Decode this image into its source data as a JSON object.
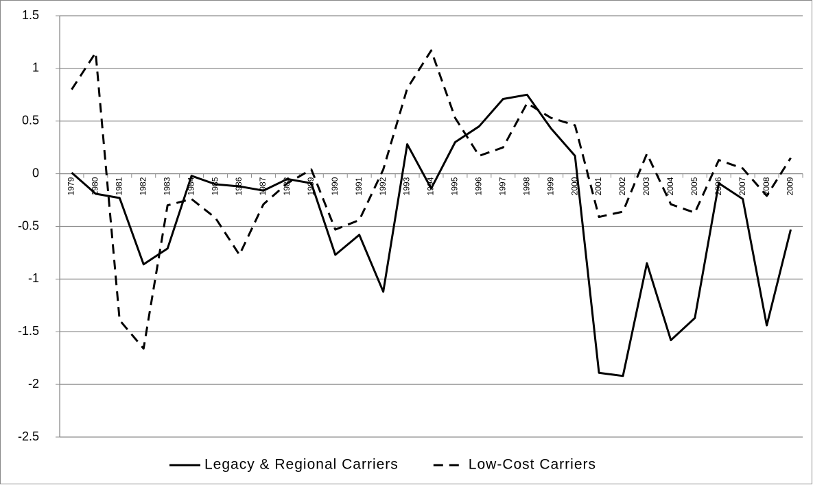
{
  "chart_data": {
    "type": "line",
    "categories": [
      "1979",
      "1980",
      "1981",
      "1982",
      "1983",
      "1984",
      "1985",
      "1986",
      "1987",
      "1988",
      "1989",
      "1990",
      "1991",
      "1992",
      "1993",
      "1994",
      "1995",
      "1996",
      "1997",
      "1998",
      "1999",
      "2000",
      "2001",
      "2002",
      "2003",
      "2004",
      "2005",
      "2006",
      "2007",
      "2008",
      "2009"
    ],
    "series": [
      {
        "name": "Legacy & Regional Carriers",
        "color": "#000000",
        "dash": false,
        "values": [
          0.01,
          -0.19,
          -0.23,
          -0.86,
          -0.71,
          -0.02,
          -0.1,
          -0.12,
          -0.16,
          -0.05,
          -0.09,
          -0.77,
          -0.58,
          -1.12,
          0.28,
          -0.14,
          0.3,
          0.45,
          0.71,
          0.75,
          0.43,
          0.17,
          -1.89,
          -1.92,
          -0.85,
          -1.58,
          -1.37,
          -0.09,
          -0.24,
          -1.44,
          -0.53
        ]
      },
      {
        "name": "Low-Cost Carriers",
        "color": "#000000",
        "dash": true,
        "values": [
          0.8,
          1.15,
          -1.39,
          -1.66,
          -0.3,
          -0.24,
          -0.42,
          -0.77,
          -0.29,
          -0.09,
          0.04,
          -0.53,
          -0.44,
          0.04,
          0.81,
          1.17,
          0.53,
          0.17,
          0.25,
          0.67,
          0.53,
          0.46,
          -0.41,
          -0.36,
          0.19,
          -0.29,
          -0.37,
          0.13,
          0.05,
          -0.21,
          0.15
        ]
      }
    ],
    "ylim": [
      -2.5,
      1.5
    ],
    "yticks": [
      -2.5,
      -2,
      -1.5,
      -1,
      -0.5,
      0,
      0.5,
      1,
      1.5
    ],
    "grid": true,
    "legend": "bottom"
  }
}
